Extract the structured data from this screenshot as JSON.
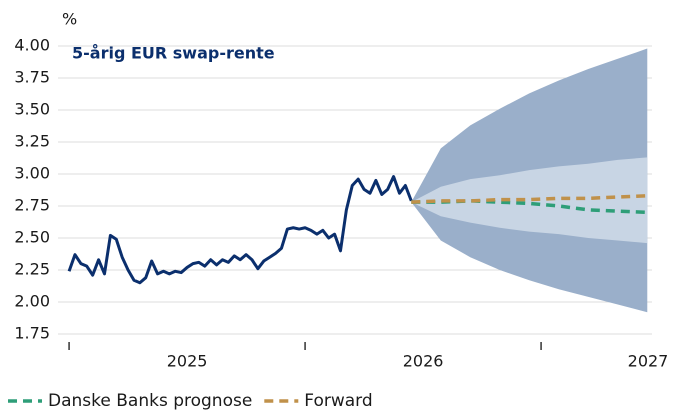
{
  "chart_data": {
    "type": "line",
    "title": "5-årig EUR swap-rente",
    "y_label": "%",
    "xlim": [
      2024.97,
      2027.47
    ],
    "xticks": [
      2025,
      2026,
      2027
    ],
    "ylim": [
      1.75,
      4.0
    ],
    "yticks": [
      {
        "value": 4.0,
        "label": "4.00"
      },
      3.75,
      {
        "value": 3.5,
        "label": "3.50"
      },
      3.25,
      {
        "value": 3.0,
        "label": "3.00"
      },
      2.75,
      {
        "value": 2.5,
        "label": "2.50"
      },
      2.25,
      {
        "value": 2.0,
        "label": "2.00"
      },
      1.75
    ],
    "grid": true,
    "bands": [
      {
        "color": "#9aafca",
        "x": [
          2026.45,
          2026.575,
          2026.7,
          2026.825,
          2026.95,
          2027.075,
          2027.2,
          2027.325,
          2027.45
        ],
        "upper": [
          2.78,
          3.2,
          3.38,
          3.51,
          3.63,
          3.73,
          3.82,
          3.9,
          3.98
        ],
        "lower": [
          2.78,
          2.48,
          2.35,
          2.25,
          2.17,
          2.1,
          2.04,
          1.98,
          1.92
        ]
      },
      {
        "color": "#c8d5e4",
        "x": [
          2026.45,
          2026.575,
          2026.7,
          2026.825,
          2026.95,
          2027.075,
          2027.2,
          2027.325,
          2027.45
        ],
        "upper": [
          2.78,
          2.9,
          2.96,
          2.99,
          3.03,
          3.06,
          3.08,
          3.11,
          3.13
        ],
        "lower": [
          2.78,
          2.67,
          2.62,
          2.58,
          2.55,
          2.53,
          2.5,
          2.48,
          2.46
        ]
      }
    ],
    "series": [
      {
        "color": "#0b2f6d",
        "dash": false,
        "x": [
          2025.0,
          2025.025,
          2025.05,
          2025.075,
          2025.1,
          2025.125,
          2025.15,
          2025.175,
          2025.2,
          2025.225,
          2025.25,
          2025.275,
          2025.3,
          2025.325,
          2025.35,
          2025.375,
          2025.4,
          2025.425,
          2025.45,
          2025.475,
          2025.5,
          2025.525,
          2025.55,
          2025.575,
          2025.6,
          2025.625,
          2025.65,
          2025.675,
          2025.7,
          2025.725,
          2025.75,
          2025.775,
          2025.8,
          2025.825,
          2025.85,
          2025.875,
          2025.9,
          2025.925,
          2025.95,
          2025.975,
          2026.0,
          2026.025,
          2026.05,
          2026.075,
          2026.1,
          2026.125,
          2026.15,
          2026.175,
          2026.2,
          2026.225,
          2026.25,
          2026.275,
          2026.3,
          2026.325,
          2026.35,
          2026.375,
          2026.4,
          2026.425,
          2026.45
        ],
        "values": [
          2.24,
          2.37,
          2.3,
          2.28,
          2.21,
          2.33,
          2.22,
          2.52,
          2.49,
          2.35,
          2.25,
          2.17,
          2.15,
          2.19,
          2.32,
          2.22,
          2.24,
          2.22,
          2.24,
          2.23,
          2.27,
          2.3,
          2.31,
          2.28,
          2.33,
          2.29,
          2.33,
          2.31,
          2.36,
          2.33,
          2.37,
          2.33,
          2.26,
          2.32,
          2.35,
          2.38,
          2.42,
          2.57,
          2.58,
          2.57,
          2.58,
          2.56,
          2.53,
          2.56,
          2.5,
          2.53,
          2.4,
          2.72,
          2.91,
          2.96,
          2.88,
          2.85,
          2.95,
          2.84,
          2.88,
          2.98,
          2.85,
          2.91,
          2.79
        ]
      },
      {
        "name": "Danske Banks prognose",
        "color": "#2e9e78",
        "dash": true,
        "x": [
          2026.45,
          2026.575,
          2026.7,
          2026.825,
          2026.95,
          2027.075,
          2027.2,
          2027.325,
          2027.45
        ],
        "values": [
          2.78,
          2.78,
          2.79,
          2.78,
          2.77,
          2.75,
          2.72,
          2.71,
          2.7
        ]
      },
      {
        "name": "Forward",
        "color": "#c0914a",
        "dash": true,
        "x": [
          2026.45,
          2026.575,
          2026.7,
          2026.825,
          2026.95,
          2027.075,
          2027.2,
          2027.325,
          2027.45
        ],
        "values": [
          2.78,
          2.79,
          2.79,
          2.8,
          2.8,
          2.81,
          2.81,
          2.82,
          2.83
        ]
      }
    ]
  }
}
